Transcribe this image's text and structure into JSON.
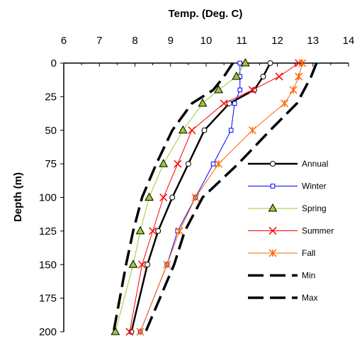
{
  "chart_data": {
    "type": "line",
    "xlabel": "Temp. (Deg. C)",
    "ylabel": "Depth (m)",
    "xlim": [
      6,
      14
    ],
    "ylim": [
      0,
      200
    ],
    "y_inverted": true,
    "x_axis_position": "top",
    "xticks": [
      6,
      7,
      8,
      9,
      10,
      11,
      12,
      13,
      14
    ],
    "yticks": [
      0,
      25,
      50,
      75,
      100,
      125,
      150,
      175,
      200
    ],
    "grid": false,
    "legend": "lower-right",
    "series": [
      {
        "name": "Annual",
        "color": "#000000",
        "marker": "circle",
        "points": [
          [
            11.8,
            0
          ],
          [
            11.6,
            10
          ],
          [
            11.35,
            20
          ],
          [
            10.65,
            30
          ],
          [
            9.95,
            50
          ],
          [
            9.5,
            75
          ],
          [
            9.05,
            100
          ],
          [
            8.65,
            125
          ],
          [
            8.35,
            150
          ],
          [
            7.9,
            200
          ]
        ]
      },
      {
        "name": "Winter",
        "color": "#0000ff",
        "marker": "square",
        "points": [
          [
            10.95,
            0
          ],
          [
            10.95,
            10
          ],
          [
            10.95,
            20
          ],
          [
            10.8,
            30
          ],
          [
            10.7,
            50
          ],
          [
            10.2,
            75
          ],
          [
            9.7,
            100
          ],
          [
            9.2,
            125
          ],
          [
            8.9,
            150
          ],
          [
            8.15,
            200
          ]
        ]
      },
      {
        "name": "Spring",
        "color": "#99cc33",
        "marker": "triangle",
        "points": [
          [
            11.1,
            0
          ],
          [
            10.85,
            10
          ],
          [
            10.35,
            20
          ],
          [
            9.9,
            30
          ],
          [
            9.35,
            50
          ],
          [
            8.8,
            75
          ],
          [
            8.4,
            100
          ],
          [
            8.15,
            125
          ],
          [
            7.95,
            150
          ],
          [
            7.45,
            200
          ]
        ]
      },
      {
        "name": "Summer",
        "color": "#ff0000",
        "marker": "x",
        "points": [
          [
            12.6,
            0
          ],
          [
            12.05,
            10
          ],
          [
            11.3,
            20
          ],
          [
            10.5,
            30
          ],
          [
            9.6,
            50
          ],
          [
            9.2,
            75
          ],
          [
            8.8,
            100
          ],
          [
            8.5,
            125
          ],
          [
            8.2,
            150
          ],
          [
            7.85,
            200
          ]
        ]
      },
      {
        "name": "Fall",
        "color": "#ff6600",
        "marker": "star",
        "points": [
          [
            12.7,
            0
          ],
          [
            12.6,
            10
          ],
          [
            12.45,
            20
          ],
          [
            12.2,
            30
          ],
          [
            11.3,
            50
          ],
          [
            10.35,
            75
          ],
          [
            9.7,
            100
          ],
          [
            9.25,
            125
          ],
          [
            8.9,
            150
          ],
          [
            8.15,
            200
          ]
        ]
      },
      {
        "name": "Min",
        "color": "#000000",
        "marker": "none",
        "dash": "long",
        "points": [
          [
            10.75,
            0
          ],
          [
            10.5,
            10
          ],
          [
            10.2,
            20
          ],
          [
            9.6,
            30
          ],
          [
            9.05,
            50
          ],
          [
            8.6,
            75
          ],
          [
            8.2,
            100
          ],
          [
            7.95,
            125
          ],
          [
            7.75,
            150
          ],
          [
            7.4,
            200
          ]
        ]
      },
      {
        "name": "Max",
        "color": "#000000",
        "marker": "none",
        "dash": "long",
        "points": [
          [
            13.1,
            0
          ],
          [
            12.95,
            10
          ],
          [
            12.75,
            20
          ],
          [
            12.55,
            30
          ],
          [
            11.8,
            50
          ],
          [
            10.9,
            75
          ],
          [
            9.9,
            100
          ],
          [
            9.4,
            125
          ],
          [
            9.1,
            150
          ],
          [
            8.3,
            200
          ]
        ]
      }
    ]
  }
}
